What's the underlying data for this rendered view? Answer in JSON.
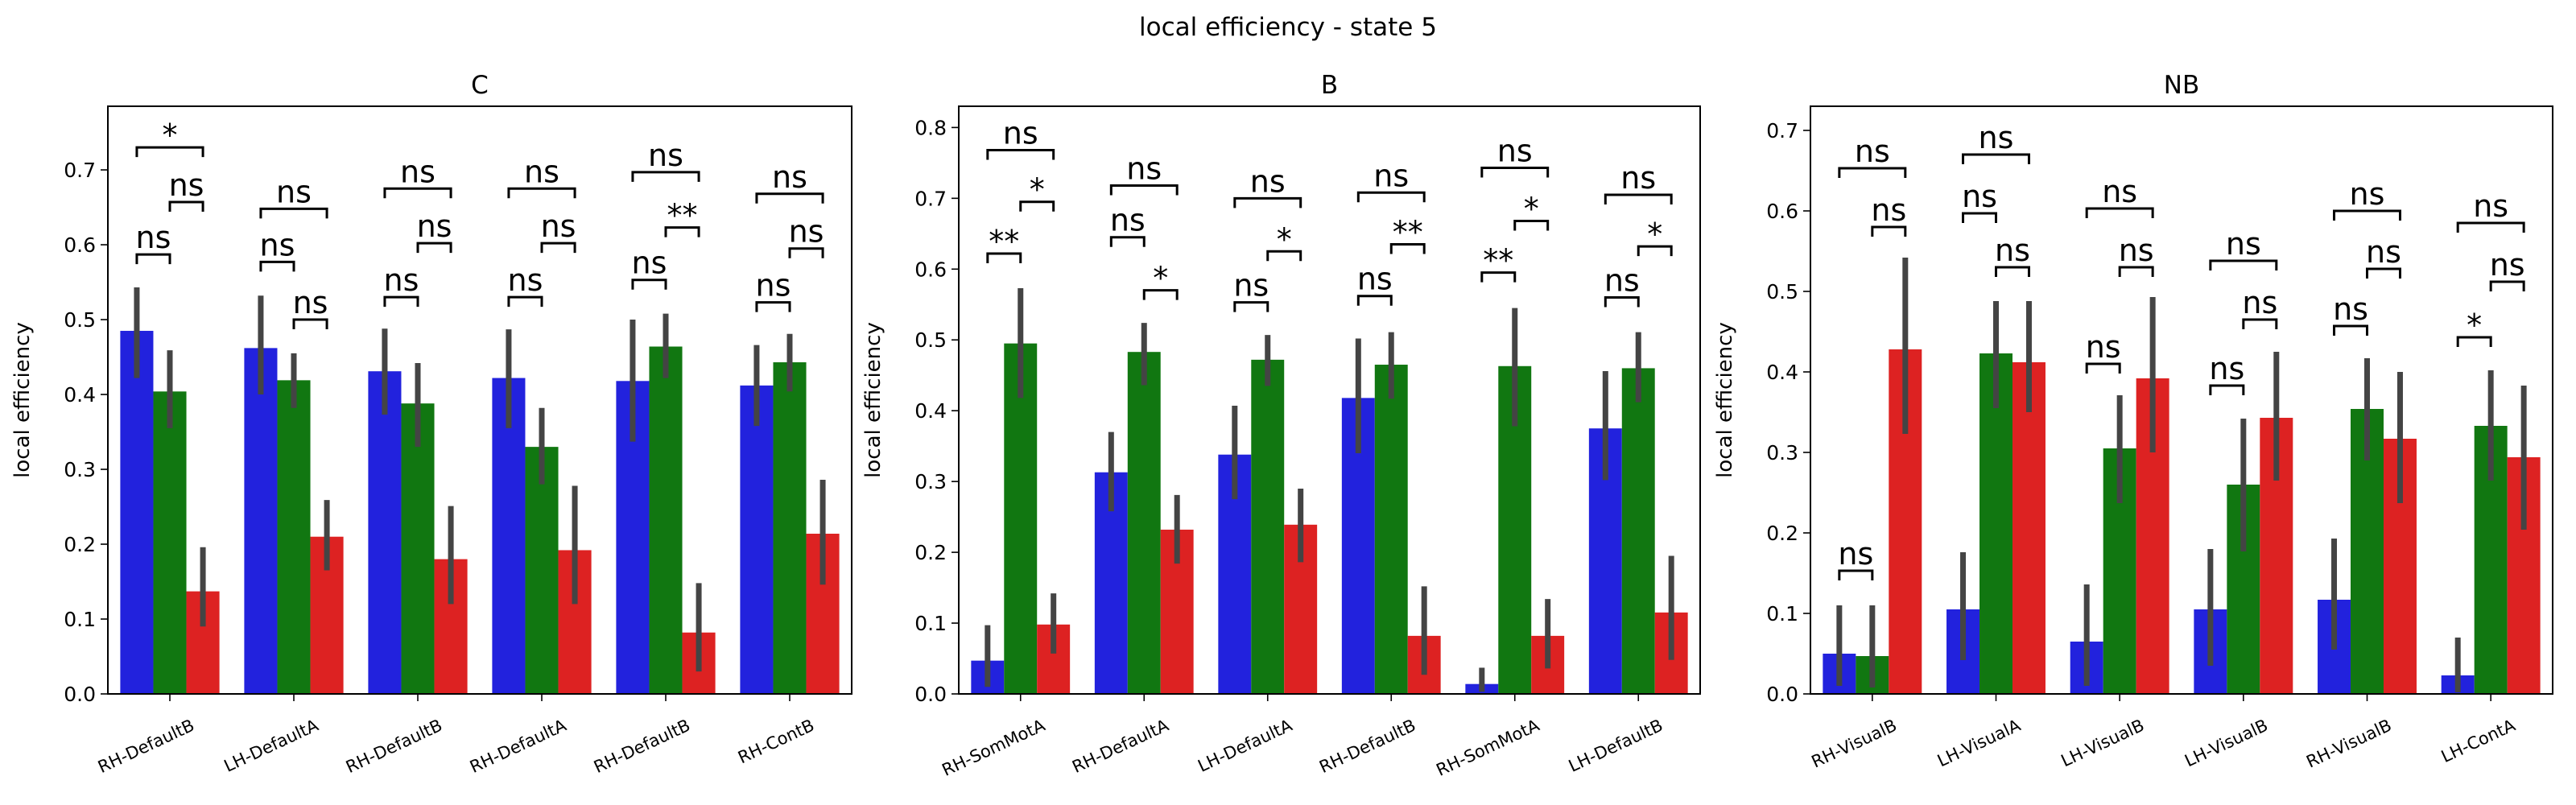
{
  "figure_title": "local efficiency - state 5",
  "colors": {
    "series1": "#2222dd",
    "series2": "#117711",
    "series3": "#dd2222",
    "errorbar": "#444444"
  },
  "chart_data": [
    {
      "type": "bar",
      "title": "C",
      "ylabel": "local efficiency",
      "xlabel": "",
      "ylim": [
        0,
        0.785
      ],
      "yticks": [
        0.0,
        0.1,
        0.2,
        0.3,
        0.4,
        0.5,
        0.6,
        0.7
      ],
      "categories": [
        "RH-DefaultB",
        "LH-DefaultA",
        "RH-DefaultB",
        "RH-DefaultA",
        "RH-DefaultB",
        "RH-ContB"
      ],
      "series": [
        {
          "values": [
            0.485,
            0.462,
            0.431,
            0.422,
            0.418,
            0.412
          ],
          "err_low": [
            0.422,
            0.4,
            0.373,
            0.355,
            0.337,
            0.358
          ],
          "err_high": [
            0.543,
            0.532,
            0.488,
            0.487,
            0.5,
            0.466
          ]
        },
        {
          "values": [
            0.404,
            0.419,
            0.388,
            0.33,
            0.464,
            0.443
          ],
          "err_low": [
            0.355,
            0.382,
            0.33,
            0.28,
            0.422,
            0.404
          ],
          "err_high": [
            0.459,
            0.455,
            0.442,
            0.382,
            0.508,
            0.481
          ]
        },
        {
          "values": [
            0.137,
            0.21,
            0.18,
            0.192,
            0.082,
            0.214
          ],
          "err_low": [
            0.09,
            0.165,
            0.12,
            0.12,
            0.03,
            0.146
          ],
          "err_high": [
            0.196,
            0.259,
            0.251,
            0.278,
            0.148,
            0.286
          ]
        }
      ],
      "annotations": [
        {
          "group": 0,
          "pair": [
            0,
            2
          ],
          "text": "*",
          "y": 0.73
        },
        {
          "group": 0,
          "pair": [
            1,
            2
          ],
          "text": "ns",
          "y": 0.657
        },
        {
          "group": 0,
          "pair": [
            0,
            1
          ],
          "text": "ns",
          "y": 0.587
        },
        {
          "group": 1,
          "pair": [
            0,
            2
          ],
          "text": "ns",
          "y": 0.648
        },
        {
          "group": 1,
          "pair": [
            1,
            2
          ],
          "text": "ns",
          "y": 0.5
        },
        {
          "group": 1,
          "pair": [
            0,
            1
          ],
          "text": "ns",
          "y": 0.577
        },
        {
          "group": 2,
          "pair": [
            0,
            2
          ],
          "text": "ns",
          "y": 0.675
        },
        {
          "group": 2,
          "pair": [
            1,
            2
          ],
          "text": "ns",
          "y": 0.602
        },
        {
          "group": 2,
          "pair": [
            0,
            1
          ],
          "text": "ns",
          "y": 0.53
        },
        {
          "group": 3,
          "pair": [
            0,
            2
          ],
          "text": "ns",
          "y": 0.675
        },
        {
          "group": 3,
          "pair": [
            1,
            2
          ],
          "text": "ns",
          "y": 0.602
        },
        {
          "group": 3,
          "pair": [
            0,
            1
          ],
          "text": "ns",
          "y": 0.53
        },
        {
          "group": 4,
          "pair": [
            0,
            2
          ],
          "text": "ns",
          "y": 0.697
        },
        {
          "group": 4,
          "pair": [
            1,
            2
          ],
          "text": "**",
          "y": 0.623
        },
        {
          "group": 4,
          "pair": [
            0,
            1
          ],
          "text": "ns",
          "y": 0.553
        },
        {
          "group": 5,
          "pair": [
            0,
            2
          ],
          "text": "ns",
          "y": 0.668
        },
        {
          "group": 5,
          "pair": [
            1,
            2
          ],
          "text": "ns",
          "y": 0.595
        },
        {
          "group": 5,
          "pair": [
            0,
            1
          ],
          "text": "ns",
          "y": 0.523
        }
      ]
    },
    {
      "type": "bar",
      "title": "B",
      "ylabel": "local efficiency",
      "xlabel": "",
      "ylim": [
        0,
        0.83
      ],
      "yticks": [
        0.0,
        0.1,
        0.2,
        0.3,
        0.4,
        0.5,
        0.6,
        0.7,
        0.8
      ],
      "categories": [
        "RH-SomMotA",
        "RH-DefaultA",
        "LH-DefaultA",
        "RH-DefaultB",
        "RH-SomMotA",
        "LH-DefaultB"
      ],
      "series": [
        {
          "values": [
            0.047,
            0.313,
            0.338,
            0.418,
            0.014,
            0.375
          ],
          "err_low": [
            0.01,
            0.258,
            0.275,
            0.34,
            0.003,
            0.302
          ],
          "err_high": [
            0.097,
            0.37,
            0.407,
            0.502,
            0.037,
            0.456
          ]
        },
        {
          "values": [
            0.495,
            0.483,
            0.472,
            0.465,
            0.463,
            0.46
          ],
          "err_low": [
            0.418,
            0.436,
            0.435,
            0.417,
            0.378,
            0.412
          ],
          "err_high": [
            0.573,
            0.524,
            0.507,
            0.511,
            0.545,
            0.511
          ]
        },
        {
          "values": [
            0.098,
            0.232,
            0.239,
            0.082,
            0.082,
            0.115
          ],
          "err_low": [
            0.057,
            0.184,
            0.186,
            0.027,
            0.036,
            0.048
          ],
          "err_high": [
            0.142,
            0.281,
            0.29,
            0.152,
            0.134,
            0.195
          ]
        }
      ],
      "annotations": [
        {
          "group": 0,
          "pair": [
            0,
            2
          ],
          "text": "ns",
          "y": 0.768
        },
        {
          "group": 0,
          "pair": [
            1,
            2
          ],
          "text": "*",
          "y": 0.695
        },
        {
          "group": 0,
          "pair": [
            0,
            1
          ],
          "text": "**",
          "y": 0.622
        },
        {
          "group": 1,
          "pair": [
            0,
            2
          ],
          "text": "ns",
          "y": 0.718
        },
        {
          "group": 1,
          "pair": [
            1,
            2
          ],
          "text": "*",
          "y": 0.57
        },
        {
          "group": 1,
          "pair": [
            0,
            1
          ],
          "text": "ns",
          "y": 0.645
        },
        {
          "group": 2,
          "pair": [
            0,
            2
          ],
          "text": "ns",
          "y": 0.7
        },
        {
          "group": 2,
          "pair": [
            1,
            2
          ],
          "text": "*",
          "y": 0.625
        },
        {
          "group": 2,
          "pair": [
            0,
            1
          ],
          "text": "ns",
          "y": 0.553
        },
        {
          "group": 3,
          "pair": [
            0,
            2
          ],
          "text": "ns",
          "y": 0.708
        },
        {
          "group": 3,
          "pair": [
            1,
            2
          ],
          "text": "**",
          "y": 0.635
        },
        {
          "group": 3,
          "pair": [
            0,
            1
          ],
          "text": "ns",
          "y": 0.562
        },
        {
          "group": 4,
          "pair": [
            0,
            2
          ],
          "text": "ns",
          "y": 0.743
        },
        {
          "group": 4,
          "pair": [
            1,
            2
          ],
          "text": "*",
          "y": 0.668
        },
        {
          "group": 4,
          "pair": [
            0,
            1
          ],
          "text": "**",
          "y": 0.595
        },
        {
          "group": 5,
          "pair": [
            0,
            2
          ],
          "text": "ns",
          "y": 0.705
        },
        {
          "group": 5,
          "pair": [
            1,
            2
          ],
          "text": "*",
          "y": 0.632
        },
        {
          "group": 5,
          "pair": [
            0,
            1
          ],
          "text": "ns",
          "y": 0.56
        }
      ]
    },
    {
      "type": "bar",
      "title": "NB",
      "ylabel": "local efficiency",
      "xlabel": "",
      "ylim": [
        0,
        0.73
      ],
      "yticks": [
        0.0,
        0.1,
        0.2,
        0.3,
        0.4,
        0.5,
        0.6,
        0.7
      ],
      "categories": [
        "RH-VisualB",
        "LH-VisualA",
        "LH-VisualB",
        "LH-VisualB",
        "RH-VisualB",
        "LH-ContA"
      ],
      "series": [
        {
          "values": [
            0.05,
            0.105,
            0.065,
            0.105,
            0.117,
            0.023
          ],
          "err_low": [
            0.01,
            0.042,
            0.01,
            0.035,
            0.055,
            0.002
          ],
          "err_high": [
            0.11,
            0.176,
            0.136,
            0.18,
            0.193,
            0.07
          ]
        },
        {
          "values": [
            0.047,
            0.423,
            0.305,
            0.26,
            0.354,
            0.333
          ],
          "err_low": [
            0.008,
            0.355,
            0.237,
            0.177,
            0.29,
            0.265
          ],
          "err_high": [
            0.11,
            0.488,
            0.371,
            0.342,
            0.417,
            0.402
          ]
        },
        {
          "values": [
            0.428,
            0.412,
            0.392,
            0.343,
            0.317,
            0.294
          ],
          "err_low": [
            0.323,
            0.35,
            0.3,
            0.265,
            0.237,
            0.204
          ],
          "err_high": [
            0.542,
            0.488,
            0.493,
            0.425,
            0.4,
            0.383
          ]
        }
      ],
      "annotations": [
        {
          "group": 0,
          "pair": [
            0,
            2
          ],
          "text": "ns",
          "y": 0.653
        },
        {
          "group": 0,
          "pair": [
            1,
            2
          ],
          "text": "ns",
          "y": 0.58
        },
        {
          "group": 0,
          "pair": [
            0,
            1
          ],
          "text": "ns",
          "y": 0.153
        },
        {
          "group": 1,
          "pair": [
            0,
            2
          ],
          "text": "ns",
          "y": 0.67
        },
        {
          "group": 1,
          "pair": [
            1,
            2
          ],
          "text": "ns",
          "y": 0.53
        },
        {
          "group": 1,
          "pair": [
            0,
            1
          ],
          "text": "ns",
          "y": 0.597
        },
        {
          "group": 2,
          "pair": [
            0,
            2
          ],
          "text": "ns",
          "y": 0.603
        },
        {
          "group": 2,
          "pair": [
            1,
            2
          ],
          "text": "ns",
          "y": 0.53
        },
        {
          "group": 2,
          "pair": [
            0,
            1
          ],
          "text": "ns",
          "y": 0.41
        },
        {
          "group": 3,
          "pair": [
            0,
            2
          ],
          "text": "ns",
          "y": 0.538
        },
        {
          "group": 3,
          "pair": [
            1,
            2
          ],
          "text": "ns",
          "y": 0.465
        },
        {
          "group": 3,
          "pair": [
            0,
            1
          ],
          "text": "ns",
          "y": 0.383
        },
        {
          "group": 4,
          "pair": [
            0,
            2
          ],
          "text": "ns",
          "y": 0.6
        },
        {
          "group": 4,
          "pair": [
            1,
            2
          ],
          "text": "ns",
          "y": 0.528
        },
        {
          "group": 4,
          "pair": [
            0,
            1
          ],
          "text": "ns",
          "y": 0.457
        },
        {
          "group": 5,
          "pair": [
            0,
            2
          ],
          "text": "ns",
          "y": 0.585
        },
        {
          "group": 5,
          "pair": [
            1,
            2
          ],
          "text": "ns",
          "y": 0.512
        },
        {
          "group": 5,
          "pair": [
            0,
            1
          ],
          "text": "*",
          "y": 0.443
        }
      ]
    }
  ]
}
